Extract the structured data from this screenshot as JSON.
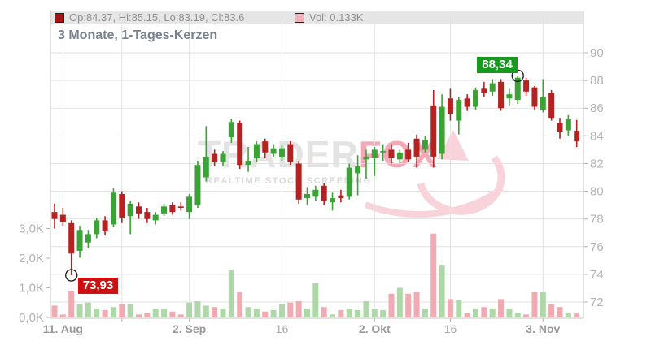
{
  "header": {
    "title": "3 Monate, 1-Tages-Kerzen"
  },
  "legend": {
    "ohlc_text": "Op:84.37, Hi:85.15, Lo:83.19, Cl:83.6",
    "vol_text": "Vol: 0.133K",
    "ohlc_swatch_color": "#a91414",
    "vol_swatch_color": "#f3b0b8"
  },
  "watermark": {
    "brand_gray": "TRADER",
    "brand_pink": "FOX",
    "subtitle": "REALTIME STOCK SCREENING"
  },
  "chart_data": {
    "type": "candlestick",
    "title": "3 Monate, 1-Tages-Kerzen",
    "price_axis": {
      "side": "right",
      "min": 72,
      "max": 90,
      "ticks": [
        72,
        74,
        76,
        78,
        80,
        82,
        84,
        86,
        88,
        90
      ]
    },
    "volume_axis": {
      "side": "left",
      "unit": "K",
      "ticks": [
        {
          "value": 0,
          "label": "0,0K"
        },
        {
          "value": 1,
          "label": "1,0K"
        },
        {
          "value": 2,
          "label": "2,0K"
        },
        {
          "value": 3,
          "label": "3,0K"
        }
      ]
    },
    "x_ticks": [
      {
        "index": 1,
        "label": "11. Aug",
        "bold": true
      },
      {
        "index": 8,
        "label": "",
        "bold": false
      },
      {
        "index": 16,
        "label": "2. Sep",
        "bold": true
      },
      {
        "index": 27,
        "label": "16",
        "bold": false
      },
      {
        "index": 38,
        "label": "2. Okt",
        "bold": true
      },
      {
        "index": 47,
        "label": "16",
        "bold": false
      },
      {
        "index": 58,
        "label": "3. Nov",
        "bold": true
      }
    ],
    "markers": [
      {
        "type": "low",
        "index": 2,
        "price": 73.93,
        "label": "73,93",
        "color": "#cb1111"
      },
      {
        "type": "high",
        "index": 55,
        "price": 88.34,
        "label": "88,34",
        "color": "#17991f"
      }
    ],
    "colors": {
      "up": "#3ba336",
      "down": "#b42222",
      "vol_up": "#afd8a8",
      "vol_down": "#f0aab2",
      "grid": "#e2e2e2",
      "axis": "#c6c6c6",
      "tick_text": "#b3b3b3",
      "x_text": "#999999",
      "x_text_light": "#ababab"
    },
    "candles": [
      [
        78.5,
        79.1,
        77.3,
        78.0,
        0.4
      ],
      [
        78.3,
        78.8,
        77.5,
        77.8,
        0.1
      ],
      [
        77.7,
        77.9,
        73.93,
        75.5,
        0.9
      ],
      [
        75.7,
        77.5,
        75.2,
        77.2,
        0.45
      ],
      [
        76.3,
        77.2,
        75.9,
        76.9,
        0.5
      ],
      [
        76.9,
        78.1,
        76.6,
        77.9,
        0.3
      ],
      [
        77.9,
        78.2,
        76.8,
        77.1,
        0.25
      ],
      [
        77.6,
        80.2,
        77.4,
        79.9,
        0.35
      ],
      [
        79.8,
        80.0,
        77.7,
        78.1,
        0.45
      ],
      [
        78.2,
        79.3,
        76.9,
        79.1,
        0.45
      ],
      [
        78.9,
        79.2,
        78.0,
        78.4,
        0.1
      ],
      [
        78.5,
        78.8,
        77.7,
        78.0,
        0.15
      ],
      [
        77.9,
        78.5,
        77.6,
        78.3,
        0.3
      ],
      [
        78.4,
        79.1,
        78.2,
        78.9,
        0.3
      ],
      [
        79.0,
        79.2,
        78.3,
        78.5,
        0.2
      ],
      [
        78.9,
        79.2,
        78.6,
        78.8,
        0.1
      ],
      [
        78.5,
        79.8,
        78.0,
        79.6,
        0.5
      ],
      [
        79.0,
        82.2,
        78.8,
        81.9,
        0.55
      ],
      [
        81.0,
        84.7,
        80.7,
        82.5,
        0.4
      ],
      [
        82.7,
        83.0,
        81.8,
        82.1,
        0.35
      ],
      [
        82.1,
        82.9,
        81.8,
        82.7,
        0.3
      ],
      [
        83.9,
        85.2,
        83.5,
        85.0,
        1.6
      ],
      [
        84.9,
        85.1,
        81.6,
        81.9,
        0.85
      ],
      [
        81.9,
        83.2,
        81.4,
        82.2,
        0.35
      ],
      [
        82.4,
        83.6,
        82.1,
        83.4,
        0.3
      ],
      [
        83.6,
        83.8,
        82.4,
        82.8,
        0.2
      ],
      [
        82.7,
        83.4,
        82.5,
        83.1,
        0.25
      ],
      [
        82.5,
        83.3,
        82.2,
        83.1,
        0.45
      ],
      [
        83.4,
        83.6,
        81.9,
        82.1,
        0.5
      ],
      [
        82.0,
        82.2,
        79.1,
        79.4,
        0.55
      ],
      [
        79.5,
        80.3,
        79.0,
        79.8,
        0.3
      ],
      [
        79.6,
        80.4,
        79.3,
        80.1,
        1.15
      ],
      [
        80.4,
        80.6,
        79.0,
        79.3,
        0.35
      ],
      [
        79.2,
        79.9,
        78.6,
        79.5,
        0.1
      ],
      [
        79.7,
        80.1,
        79.2,
        79.5,
        0.25
      ],
      [
        79.6,
        82.0,
        79.4,
        81.7,
        0.3
      ],
      [
        81.3,
        82.6,
        79.7,
        81.8,
        0.25
      ],
      [
        82.3,
        83.0,
        80.9,
        82.5,
        0.55
      ],
      [
        82.4,
        83.2,
        81.1,
        83.0,
        0.3
      ],
      [
        82.8,
        83.4,
        82.2,
        82.9,
        0.25
      ],
      [
        83.0,
        83.4,
        82.0,
        82.4,
        0.8
      ],
      [
        82.3,
        83.0,
        82.0,
        82.8,
        1.0
      ],
      [
        83.0,
        83.5,
        82.1,
        82.3,
        0.8
      ],
      [
        83.8,
        84.1,
        81.7,
        82.5,
        0.85
      ],
      [
        83.0,
        84.0,
        82.8,
        83.7,
        0.3
      ],
      [
        86.2,
        87.3,
        81.7,
        82.5,
        2.83
      ],
      [
        82.7,
        87.0,
        82.3,
        86.1,
        1.75
      ],
      [
        86.7,
        87.4,
        85.1,
        85.6,
        0.62
      ],
      [
        85.1,
        86.8,
        84.1,
        86.6,
        0.6
      ],
      [
        86.7,
        87.0,
        85.8,
        86.1,
        0.15
      ],
      [
        86.1,
        87.5,
        85.9,
        87.3,
        0.3
      ],
      [
        87.4,
        87.9,
        86.8,
        87.1,
        0.35
      ],
      [
        87.2,
        88.1,
        86.9,
        87.8,
        0.3
      ],
      [
        87.9,
        88.1,
        85.8,
        86.0,
        0.62
      ],
      [
        86.7,
        87.4,
        86.2,
        87.0,
        0.3
      ],
      [
        86.6,
        88.34,
        86.3,
        88.2,
        0.15
      ],
      [
        88.0,
        88.2,
        86.9,
        87.2,
        0.1
      ],
      [
        87.5,
        87.6,
        85.9,
        86.1,
        0.85
      ],
      [
        85.9,
        88.1,
        85.7,
        86.8,
        0.85
      ],
      [
        87.1,
        87.3,
        85.1,
        85.3,
        0.45
      ],
      [
        84.9,
        85.3,
        83.8,
        84.3,
        0.35
      ],
      [
        84.4,
        85.5,
        84.0,
        85.2,
        0.15
      ],
      [
        84.37,
        85.15,
        83.19,
        83.6,
        0.133
      ]
    ]
  }
}
